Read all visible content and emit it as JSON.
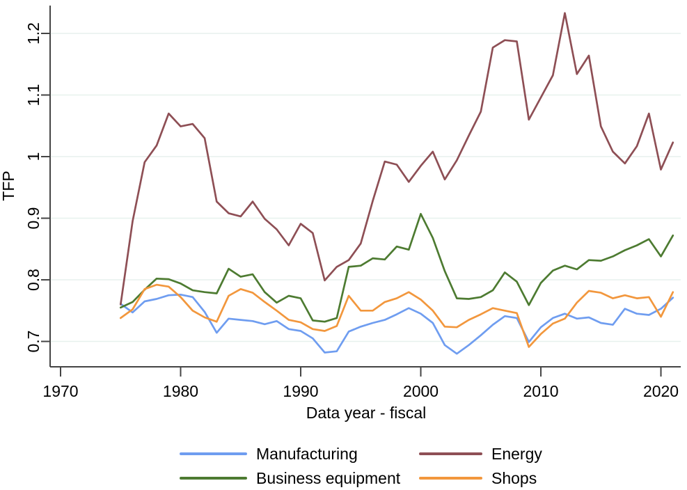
{
  "chart_data": {
    "type": "line",
    "title": "",
    "xlabel": "Data year - fiscal",
    "ylabel": "TFP",
    "x_ticks": [
      1970,
      1980,
      1990,
      2000,
      2010,
      2020
    ],
    "x_tick_labels": [
      "1970",
      "1980",
      "1990",
      "2000",
      "2010",
      "2020"
    ],
    "y_ticks": [
      0.7,
      0.8,
      0.9,
      1.0,
      1.1,
      1.2
    ],
    "y_tick_labels": [
      "0.7",
      "0.8",
      "0.9",
      "1",
      "1.1",
      "1.2"
    ],
    "xlim": [
      1969.13,
      2021.65
    ],
    "ylim": [
      0.6588,
      1.2452
    ],
    "grid": "horizontal",
    "legend_position": "bottom",
    "axis_color": "#444444",
    "gridline_color": "#e7f1ee",
    "x": [
      1975,
      1976,
      1977,
      1978,
      1979,
      1980,
      1981,
      1982,
      1983,
      1984,
      1985,
      1986,
      1987,
      1988,
      1989,
      1990,
      1991,
      1992,
      1993,
      1994,
      1995,
      1996,
      1997,
      1998,
      1999,
      2000,
      2001,
      2002,
      2003,
      2004,
      2005,
      2006,
      2007,
      2008,
      2009,
      2010,
      2011,
      2012,
      2013,
      2014,
      2015,
      2016,
      2017,
      2018,
      2019,
      2020,
      2021
    ],
    "series": [
      {
        "name": "Manufacturing",
        "color": "#6f9df0",
        "values": [
          0.761,
          0.747,
          0.765,
          0.769,
          0.775,
          0.776,
          0.772,
          0.748,
          0.714,
          0.737,
          0.735,
          0.733,
          0.728,
          0.733,
          0.72,
          0.717,
          0.705,
          0.682,
          0.684,
          0.716,
          0.724,
          0.73,
          0.735,
          0.744,
          0.754,
          0.745,
          0.73,
          0.694,
          0.68,
          0.694,
          0.71,
          0.727,
          0.741,
          0.738,
          0.699,
          0.723,
          0.738,
          0.745,
          0.737,
          0.739,
          0.73,
          0.727,
          0.753,
          0.745,
          0.743,
          0.753,
          0.771
        ]
      },
      {
        "name": "Business equipment",
        "color": "#4d7b31",
        "values": [
          0.755,
          0.764,
          0.784,
          0.802,
          0.801,
          0.794,
          0.783,
          0.78,
          0.778,
          0.818,
          0.805,
          0.809,
          0.78,
          0.763,
          0.774,
          0.77,
          0.734,
          0.732,
          0.738,
          0.821,
          0.823,
          0.835,
          0.833,
          0.854,
          0.849,
          0.907,
          0.868,
          0.814,
          0.77,
          0.769,
          0.772,
          0.783,
          0.812,
          0.797,
          0.759,
          0.795,
          0.815,
          0.823,
          0.817,
          0.832,
          0.831,
          0.838,
          0.848,
          0.856,
          0.866,
          0.838,
          0.872
        ]
      },
      {
        "name": "Energy",
        "color": "#8e4f55",
        "values": [
          0.76,
          0.895,
          0.991,
          1.018,
          1.07,
          1.049,
          1.053,
          1.03,
          0.927,
          0.908,
          0.903,
          0.927,
          0.899,
          0.882,
          0.856,
          0.891,
          0.876,
          0.799,
          0.821,
          0.832,
          0.859,
          0.928,
          0.992,
          0.987,
          0.959,
          0.985,
          1.008,
          0.963,
          0.994,
          1.034,
          1.073,
          1.177,
          1.189,
          1.187,
          1.06,
          1.096,
          1.132,
          1.233,
          1.134,
          1.164,
          1.049,
          1.008,
          0.989,
          1.017,
          1.07,
          0.979,
          1.023
        ]
      },
      {
        "name": "Shops",
        "color": "#f2973d",
        "values": [
          0.738,
          0.752,
          0.785,
          0.792,
          0.789,
          0.772,
          0.75,
          0.739,
          0.732,
          0.774,
          0.785,
          0.779,
          0.764,
          0.75,
          0.735,
          0.731,
          0.72,
          0.717,
          0.725,
          0.774,
          0.75,
          0.75,
          0.764,
          0.77,
          0.78,
          0.768,
          0.75,
          0.724,
          0.723,
          0.735,
          0.744,
          0.754,
          0.75,
          0.746,
          0.691,
          0.712,
          0.729,
          0.737,
          0.763,
          0.782,
          0.779,
          0.77,
          0.775,
          0.77,
          0.772,
          0.74,
          0.78
        ]
      }
    ]
  }
}
